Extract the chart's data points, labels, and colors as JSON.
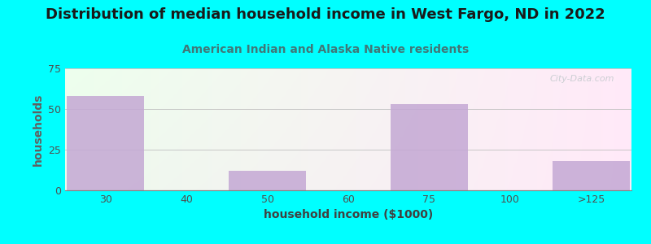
{
  "title": "Distribution of median household income in West Fargo, ND in 2022",
  "subtitle": "American Indian and Alaska Native residents",
  "xlabel": "household income ($1000)",
  "ylabel": "households",
  "background_color": "#00FFFF",
  "bar_color": "#C4A8D4",
  "categories": [
    "30",
    "40",
    "50",
    "60",
    "75",
    "100",
    ">125"
  ],
  "values": [
    58,
    0,
    12,
    0,
    53,
    0,
    18
  ],
  "ylim": [
    0,
    75
  ],
  "yticks": [
    0,
    25,
    50,
    75
  ],
  "title_fontsize": 13,
  "subtitle_fontsize": 10,
  "subtitle_color": "#407878",
  "axis_label_fontsize": 10,
  "tick_fontsize": 9,
  "watermark": "City-Data.com"
}
